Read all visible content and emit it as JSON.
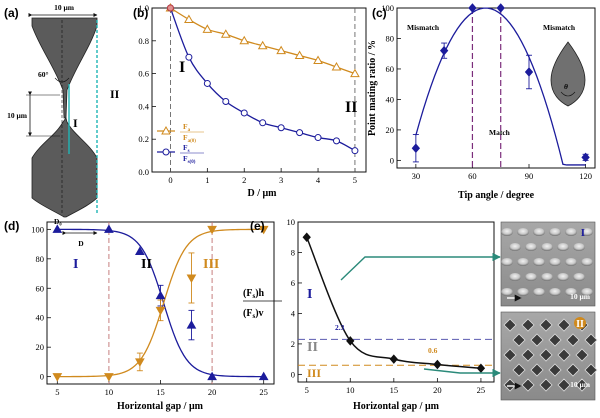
{
  "panels": {
    "a": {
      "label": "(a)",
      "width_text": "10 μm",
      "angle_text": "60°",
      "height_text": "10 μm",
      "region1": "I",
      "region2": "II",
      "gap_symbol": "D₀",
      "gap_label": "D"
    },
    "b": {
      "label": "(b)",
      "region1": "I",
      "region2": "II",
      "legend": [
        {
          "num": "F",
          "num_sub": "a",
          "den": "F",
          "den_sub": "a(0)"
        },
        {
          "num": "F",
          "num_sub": "s",
          "den": "F",
          "den_sub": "s(0)"
        }
      ]
    },
    "c": {
      "label": "(c)",
      "mismatch_left": "Mismatch",
      "mismatch_right": "Mismatch",
      "match": "Match",
      "theta": "θ"
    },
    "d": {
      "label": "(d)",
      "region1": "I",
      "region2": "II",
      "region3": "III"
    },
    "e": {
      "label": "(e)",
      "region1": "I",
      "region2": "II",
      "region3": "III",
      "ratio_num": "(F",
      "ratio_num_sub": "s",
      "ratio_num_end": ")h",
      "ratio_den": "(F",
      "ratio_den_sub": "s",
      "ratio_den_end": ")v",
      "val_23": "2.3",
      "val_06": "0.6",
      "sem_top_label": "I",
      "sem_bot_label": "II",
      "scale_top": "10 μm",
      "scale_bot": "10 μm"
    }
  },
  "chart_data": [
    {
      "panel": "b",
      "type": "line",
      "xlabel": "D / μm",
      "ylabel": "",
      "xlim": [
        -0.5,
        5.3
      ],
      "ylim": [
        0,
        1.0
      ],
      "xticks": [
        0,
        1,
        2,
        3,
        4,
        5
      ],
      "yticks": [
        0.0,
        0.2,
        0.4,
        0.6,
        0.8,
        1.0
      ],
      "series": [
        {
          "name": "Fa/Fa(0)",
          "color": "#d08a1e",
          "marker": "triangle",
          "x": [
            0,
            0.5,
            1,
            1.5,
            2,
            2.5,
            3,
            3.5,
            4,
            4.5,
            5
          ],
          "y": [
            1.0,
            0.93,
            0.87,
            0.84,
            0.8,
            0.77,
            0.74,
            0.71,
            0.68,
            0.64,
            0.6
          ]
        },
        {
          "name": "Fs/Fs(0)",
          "color": "#1c1c9c",
          "marker": "circle",
          "x": [
            0,
            0.5,
            1,
            1.5,
            2,
            2.5,
            3,
            3.5,
            4,
            4.5,
            5
          ],
          "y": [
            1.0,
            0.7,
            0.54,
            0.43,
            0.36,
            0.3,
            0.27,
            0.24,
            0.21,
            0.19,
            0.13
          ]
        }
      ]
    },
    {
      "panel": "c",
      "type": "scatter",
      "xlabel": "Tip angle / degree",
      "ylabel": "Point mating ratio / %",
      "xlim": [
        20,
        125
      ],
      "ylim": [
        -5,
        100
      ],
      "xticks": [
        30,
        60,
        90,
        120
      ],
      "yticks": [
        0,
        20,
        40,
        60,
        80,
        100
      ],
      "series": [
        {
          "name": "",
          "color": "#1c1c9c",
          "x": [
            30,
            45,
            60,
            75,
            90,
            120
          ],
          "y": [
            8,
            72,
            100,
            100,
            58,
            2
          ],
          "err": [
            9,
            5,
            0,
            0,
            11,
            2
          ]
        }
      ],
      "vlines": [
        60,
        75
      ]
    },
    {
      "panel": "d",
      "type": "line",
      "xlabel": "Horizontal gap / μm",
      "ylabel": "",
      "xlim": [
        4,
        26
      ],
      "ylim": [
        -5,
        105
      ],
      "xticks": [
        5,
        10,
        15,
        20,
        25
      ],
      "yticks": [
        0,
        20,
        40,
        60,
        80,
        100
      ],
      "vlines": [
        10,
        20
      ],
      "series": [
        {
          "name": "",
          "color": "#1c1c9c",
          "marker": "triangle-up",
          "x": [
            5,
            10,
            13,
            15,
            18,
            20,
            25
          ],
          "y": [
            100,
            100,
            85,
            55,
            35,
            0,
            0
          ],
          "err": [
            0,
            0,
            0,
            7,
            10,
            0,
            0
          ]
        },
        {
          "name": "",
          "color": "#d08a1e",
          "marker": "triangle-down",
          "x": [
            5,
            10,
            13,
            15,
            18,
            20,
            25
          ],
          "y": [
            0,
            0,
            10,
            45,
            67,
            100,
            100
          ],
          "err": [
            0,
            0,
            6,
            7,
            17,
            0,
            0
          ]
        }
      ]
    },
    {
      "panel": "e",
      "type": "line",
      "xlabel": "Horizontal gap / μm",
      "ylabel": "",
      "xlim": [
        4,
        26.5
      ],
      "ylim": [
        -0.5,
        10
      ],
      "xticks": [
        5,
        10,
        15,
        20,
        25
      ],
      "yticks": [
        0,
        2,
        4,
        6,
        8,
        10
      ],
      "hlines": [
        2.3,
        0.6
      ],
      "series": [
        {
          "name": "",
          "color": "#111111",
          "marker": "diamond",
          "x": [
            5,
            10,
            15,
            20,
            25
          ],
          "y": [
            9.0,
            2.2,
            1.0,
            0.65,
            0.4
          ]
        }
      ]
    }
  ]
}
